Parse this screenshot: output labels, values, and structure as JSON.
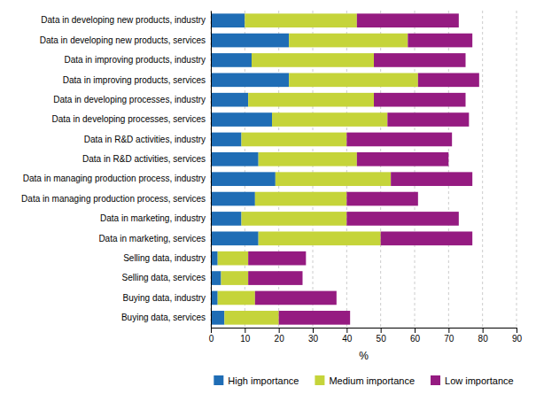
{
  "chart_data": {
    "type": "bar",
    "orientation": "horizontal",
    "stacked": true,
    "categories": [
      "Data in developing new products, industry",
      "Data in developing new products, services",
      "Data in improving products, industry",
      "Data in improving products, services",
      "Data in developing processes, industry",
      "Data in developing processes, services",
      "Data in R&D activities, industry",
      "Data in R&D activities, services",
      "Data in managing production process, industry",
      "Data in managing production process, services",
      "Data in marketing, industry",
      "Data in marketing, services",
      "Selling data, industry",
      "Selling data, services",
      "Buying data, industry",
      "Buying data, services"
    ],
    "series": [
      {
        "name": "High importance",
        "color": "#1f6db5",
        "values": [
          10,
          23,
          12,
          23,
          11,
          18,
          9,
          14,
          19,
          13,
          9,
          14,
          2,
          3,
          2,
          4
        ]
      },
      {
        "name": "Medium importance",
        "color": "#c5d43a",
        "values": [
          33,
          35,
          36,
          38,
          37,
          34,
          31,
          29,
          34,
          27,
          31,
          36,
          9,
          8,
          11,
          16
        ]
      },
      {
        "name": "Low importance",
        "color": "#951b81",
        "values": [
          30,
          19,
          27,
          18,
          27,
          24,
          31,
          27,
          24,
          21,
          33,
          27,
          17,
          16,
          24,
          21
        ]
      }
    ],
    "xlabel": "%",
    "xlim": [
      0,
      90
    ],
    "xticks": [
      0,
      10,
      20,
      30,
      40,
      50,
      60,
      70,
      80,
      90
    ],
    "grid": true,
    "legend": "bottom"
  }
}
